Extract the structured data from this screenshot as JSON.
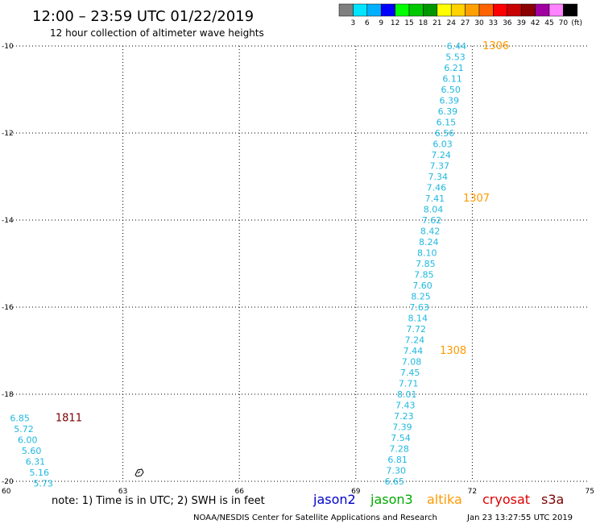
{
  "header": {
    "title": "12:00 – 23:59 UTC 01/22/2019",
    "subtitle": "12 hour collection of altimeter wave heights"
  },
  "color_scale": {
    "labels": [
      "3",
      "6",
      "9",
      "12",
      "15",
      "18",
      "21",
      "24",
      "27",
      "30",
      "33",
      "36",
      "39",
      "42",
      "45",
      "70"
    ],
    "unit": "(ft)",
    "colors": [
      "#808080",
      "#00e5ff",
      "#00b0ff",
      "#0000ff",
      "#00ff00",
      "#00c800",
      "#009600",
      "#ffff00",
      "#ffd200",
      "#ffa000",
      "#ff6400",
      "#ff0000",
      "#c80000",
      "#8b0000",
      "#a000a0",
      "#ff82ff",
      "#000000"
    ]
  },
  "footer": {
    "note": "note:  1) Time is in UTC;  2) SWH is in feet",
    "satellites": [
      {
        "name": "jason2",
        "color": "#0000cc"
      },
      {
        "name": "jason3",
        "color": "#00aa00"
      },
      {
        "name": "altika",
        "color": "#ff9900"
      },
      {
        "name": "cryosat",
        "color": "#dd0000"
      },
      {
        "name": "s3a",
        "color": "#7a0000"
      }
    ],
    "credit": "NOAA/NESDIS Center for Satellite Applications and Research",
    "timestamp": "Jan 23 13:27:55 UTC 2019"
  },
  "chart_data": {
    "type": "scatter",
    "xlim": [
      60,
      75
    ],
    "ylim": [
      -20,
      -10
    ],
    "x_ticks": [
      60,
      63,
      66,
      69,
      72,
      75
    ],
    "y_ticks": [
      -10,
      -12,
      -14,
      -16,
      -18,
      -20
    ],
    "grid": true,
    "point_color": "#1fb8e0",
    "series": [
      {
        "points": [
          {
            "x": 71.85,
            "y": -10.0,
            "v": "6.44"
          },
          {
            "x": 71.82,
            "y": -10.25,
            "v": "5.53"
          },
          {
            "x": 71.78,
            "y": -10.5,
            "v": "6.21"
          },
          {
            "x": 71.74,
            "y": -10.75,
            "v": "6.11"
          },
          {
            "x": 71.7,
            "y": -11.0,
            "v": "6.50"
          },
          {
            "x": 71.66,
            "y": -11.25,
            "v": "6.39"
          },
          {
            "x": 71.62,
            "y": -11.5,
            "v": "6.39"
          },
          {
            "x": 71.58,
            "y": -11.75,
            "v": "6.15"
          },
          {
            "x": 71.54,
            "y": -12.0,
            "v": "6.56"
          },
          {
            "x": 71.49,
            "y": -12.25,
            "v": "6.03"
          },
          {
            "x": 71.45,
            "y": -12.5,
            "v": "7.24"
          },
          {
            "x": 71.41,
            "y": -12.75,
            "v": "7.37"
          },
          {
            "x": 71.37,
            "y": -13.0,
            "v": "7.34"
          },
          {
            "x": 71.33,
            "y": -13.25,
            "v": "7.46"
          },
          {
            "x": 71.29,
            "y": -13.5,
            "v": "7.41"
          },
          {
            "x": 71.25,
            "y": -13.75,
            "v": "8.04"
          },
          {
            "x": 71.21,
            "y": -14.0,
            "v": "7.62"
          },
          {
            "x": 71.17,
            "y": -14.25,
            "v": "8.42"
          },
          {
            "x": 71.13,
            "y": -14.5,
            "v": "8.24"
          },
          {
            "x": 71.09,
            "y": -14.75,
            "v": "8.10"
          },
          {
            "x": 71.05,
            "y": -15.0,
            "v": "7.85"
          },
          {
            "x": 71.01,
            "y": -15.25,
            "v": "7.85"
          },
          {
            "x": 70.97,
            "y": -15.5,
            "v": "7.60"
          },
          {
            "x": 70.93,
            "y": -15.75,
            "v": "8.25"
          },
          {
            "x": 70.89,
            "y": -16.0,
            "v": "7.63"
          },
          {
            "x": 70.85,
            "y": -16.25,
            "v": "8.14"
          },
          {
            "x": 70.81,
            "y": -16.5,
            "v": "7.72"
          },
          {
            "x": 70.77,
            "y": -16.75,
            "v": "7.24"
          },
          {
            "x": 70.73,
            "y": -17.0,
            "v": "7.44"
          },
          {
            "x": 70.69,
            "y": -17.25,
            "v": "7.08"
          },
          {
            "x": 70.65,
            "y": -17.5,
            "v": "7.45"
          },
          {
            "x": 70.61,
            "y": -17.75,
            "v": "7.71"
          },
          {
            "x": 70.57,
            "y": -18.0,
            "v": "8.01"
          },
          {
            "x": 70.53,
            "y": -18.25,
            "v": "7.43"
          },
          {
            "x": 70.49,
            "y": -18.5,
            "v": "7.23"
          },
          {
            "x": 70.45,
            "y": -18.75,
            "v": "7.39"
          },
          {
            "x": 70.41,
            "y": -19.0,
            "v": "7.54"
          },
          {
            "x": 70.37,
            "y": -19.25,
            "v": "7.28"
          },
          {
            "x": 70.33,
            "y": -19.5,
            "v": "6.81"
          },
          {
            "x": 70.29,
            "y": -19.75,
            "v": "7.30"
          },
          {
            "x": 70.25,
            "y": -20.0,
            "v": "6.65"
          }
        ]
      },
      {
        "points": [
          {
            "x": 60.6,
            "y": -18.55,
            "v": "6.85"
          },
          {
            "x": 60.7,
            "y": -18.8,
            "v": "5.72"
          },
          {
            "x": 60.8,
            "y": -19.05,
            "v": "6.00"
          },
          {
            "x": 60.9,
            "y": -19.3,
            "v": "5.60"
          },
          {
            "x": 61.0,
            "y": -19.55,
            "v": "6.31"
          },
          {
            "x": 61.1,
            "y": -19.8,
            "v": "5.16"
          },
          {
            "x": 61.2,
            "y": -20.05,
            "v": "5.73"
          }
        ]
      }
    ],
    "pass_labels": [
      {
        "text": "1306",
        "x": 72.95,
        "y": -10.0,
        "color": "#ff9900"
      },
      {
        "text": "1307",
        "x": 72.45,
        "y": -13.5,
        "color": "#ff9900"
      },
      {
        "text": "1308",
        "x": 71.85,
        "y": -17.0,
        "color": "#ff9900"
      },
      {
        "text": "1811",
        "x": 61.95,
        "y": -18.55,
        "color": "#7a0000"
      }
    ]
  }
}
